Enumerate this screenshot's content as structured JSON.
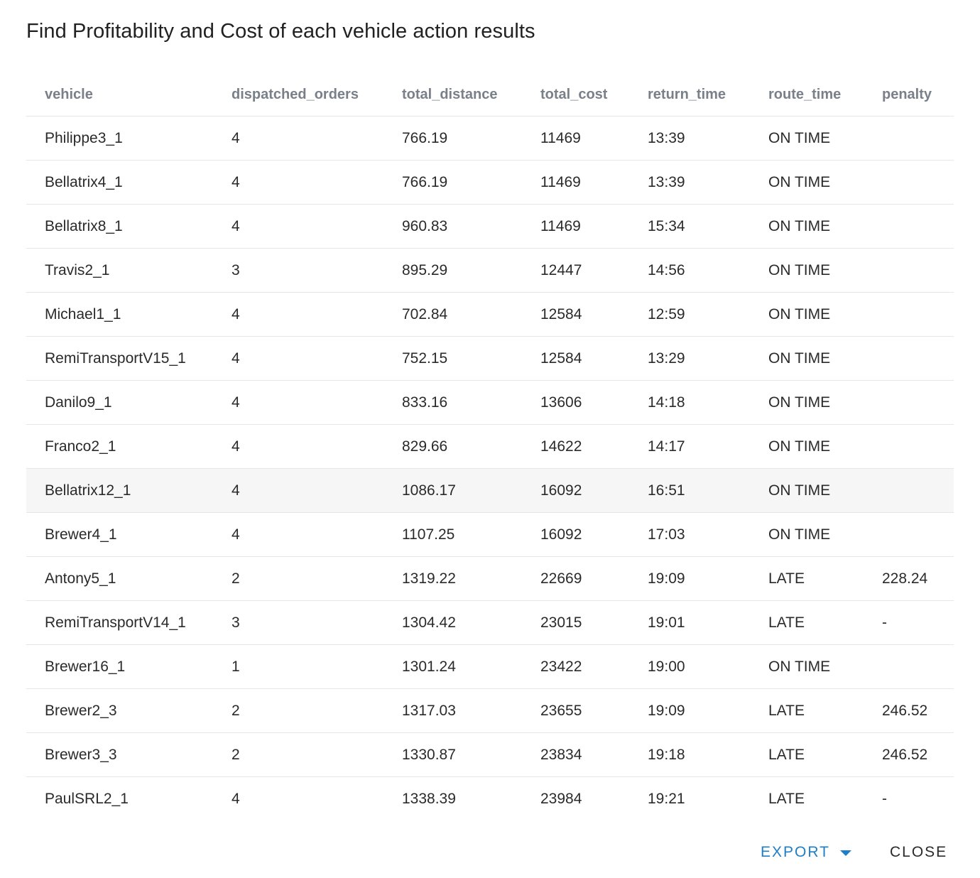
{
  "dialog": {
    "title": "Find Profitability and Cost of each vehicle action results"
  },
  "table": {
    "columns": [
      "vehicle",
      "dispatched_orders",
      "total_distance",
      "total_cost",
      "return_time",
      "route_time",
      "penalty"
    ],
    "rows": [
      [
        "Philippe3_1",
        "4",
        "766.19",
        "11469",
        "13:39",
        "ON TIME",
        ""
      ],
      [
        "Bellatrix4_1",
        "4",
        "766.19",
        "11469",
        "13:39",
        "ON TIME",
        ""
      ],
      [
        "Bellatrix8_1",
        "4",
        "960.83",
        "11469",
        "15:34",
        "ON TIME",
        ""
      ],
      [
        "Travis2_1",
        "3",
        "895.29",
        "12447",
        "14:56",
        "ON TIME",
        ""
      ],
      [
        "Michael1_1",
        "4",
        "702.84",
        "12584",
        "12:59",
        "ON TIME",
        ""
      ],
      [
        "RemiTransportV15_1",
        "4",
        "752.15",
        "12584",
        "13:29",
        "ON TIME",
        ""
      ],
      [
        "Danilo9_1",
        "4",
        "833.16",
        "13606",
        "14:18",
        "ON TIME",
        ""
      ],
      [
        "Franco2_1",
        "4",
        "829.66",
        "14622",
        "14:17",
        "ON TIME",
        ""
      ],
      [
        "Bellatrix12_1",
        "4",
        "1086.17",
        "16092",
        "16:51",
        "ON TIME",
        ""
      ],
      [
        "Brewer4_1",
        "4",
        "1107.25",
        "16092",
        "17:03",
        "ON TIME",
        ""
      ],
      [
        "Antony5_1",
        "2",
        "1319.22",
        "22669",
        "19:09",
        "LATE",
        "228.24"
      ],
      [
        "RemiTransportV14_1",
        "3",
        "1304.42",
        "23015",
        "19:01",
        "LATE",
        "-"
      ],
      [
        "Brewer16_1",
        "1",
        "1301.24",
        "23422",
        "19:00",
        "ON TIME",
        ""
      ],
      [
        "Brewer2_3",
        "2",
        "1317.03",
        "23655",
        "19:09",
        "LATE",
        "246.52"
      ],
      [
        "Brewer3_3",
        "2",
        "1330.87",
        "23834",
        "19:18",
        "LATE",
        "246.52"
      ],
      [
        "PaulSRL2_1",
        "4",
        "1338.39",
        "23984",
        "19:21",
        "LATE",
        "-"
      ]
    ],
    "hovered_row": 8
  },
  "actions": {
    "export_label": "EXPORT",
    "export_icon": "caret-down-icon",
    "close_label": "CLOSE"
  },
  "colors": {
    "accent": "#1e7ec8",
    "header_text": "#7a8089",
    "row_hover": "#f7f6f6",
    "divider": "#e6e6e6"
  }
}
